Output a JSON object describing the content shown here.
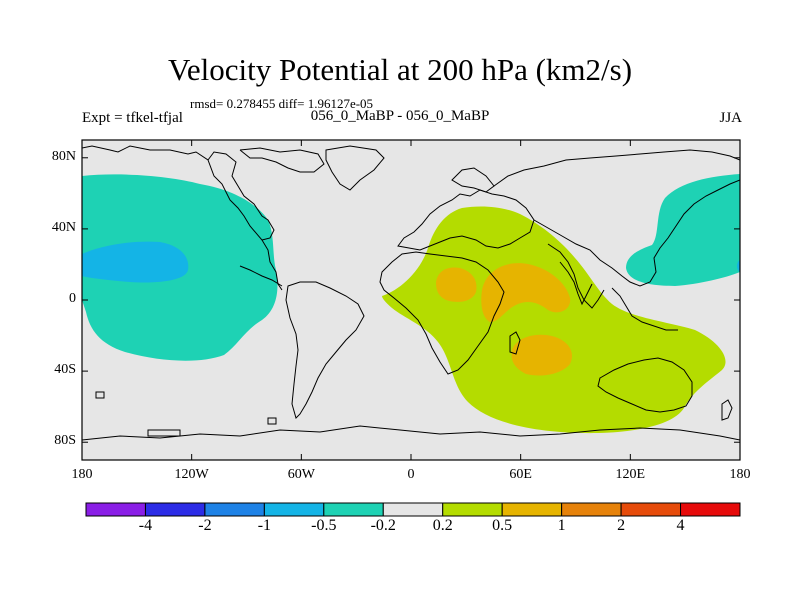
{
  "title": "Velocity Potential at 200 hPa (km2/s)",
  "stats": "rmsd= 0.278455 diff= 1.96127e-05",
  "left_label": "Expt = tfkel-tfjal",
  "center_label": "056_0_MaBP - 056_0_MaBP",
  "right_label": "JJA",
  "y_ticks": [
    {
      "label": "80N",
      "lat": 80
    },
    {
      "label": "40N",
      "lat": 40
    },
    {
      "label": "0",
      "lat": 0
    },
    {
      "label": "40S",
      "lat": -40
    },
    {
      "label": "80S",
      "lat": -80
    }
  ],
  "x_ticks": [
    {
      "label": "180",
      "lon": -180
    },
    {
      "label": "120W",
      "lon": -120
    },
    {
      "label": "60W",
      "lon": -60
    },
    {
      "label": "0",
      "lon": 0
    },
    {
      "label": "60E",
      "lon": 60
    },
    {
      "label": "120E",
      "lon": 120
    },
    {
      "label": "180",
      "lon": 180
    }
  ],
  "colorbar": {
    "colors": [
      "#8a1ee6",
      "#2c2ce6",
      "#1e82e6",
      "#14b4e6",
      "#1ed2b4",
      "#e6e6e6",
      "#b4dc00",
      "#e6b400",
      "#e6820a",
      "#e64b0a",
      "#e60a0a"
    ],
    "labels": [
      "-4",
      "-2",
      "-1",
      "-0.5",
      "-0.2",
      "0.2",
      "0.5",
      "1",
      "2",
      "4"
    ]
  },
  "colors": {
    "background_field": "#e6e6e6",
    "neg_light": "#1ed2b4",
    "neg_mid": "#14b4e6",
    "pos_light": "#b4dc00",
    "pos_mid": "#e6b400"
  }
}
